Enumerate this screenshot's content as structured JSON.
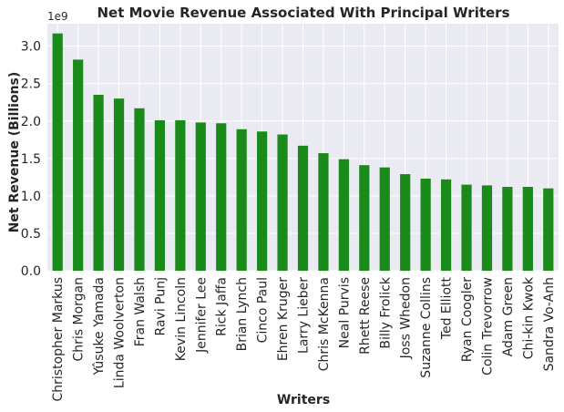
{
  "chart_data": {
    "type": "bar",
    "title": "Net Movie Revenue Associated With Principal Writers",
    "xlabel": "Writers",
    "ylabel": "Net Revenue (Billions)",
    "y_offset_label": "1e9",
    "ylim": [
      0,
      3.3
    ],
    "yticks": [
      0.0,
      0.5,
      1.0,
      1.5,
      2.0,
      2.5,
      3.0
    ],
    "ytick_labels": [
      "0.0",
      "0.5",
      "1.0",
      "1.5",
      "2.0",
      "2.5",
      "3.0"
    ],
    "grid": true,
    "bar_color": "#1a8a1a",
    "background_color": "#eaeaf2",
    "categories": [
      "Christopher Markus",
      "Chris Morgan",
      "Yûsuke Yamada",
      "Linda Woolverton",
      "Fran Walsh",
      "Ravi Punj",
      "Kevin Lincoln",
      "Jennifer Lee",
      "Rick Jaffa",
      "Brian Lynch",
      "Cinco Paul",
      "Ehren Kruger",
      "Larry Lieber",
      "Chris McKenna",
      "Neal Purvis",
      "Rhett Reese",
      "Billy Frolick",
      "Joss Whedon",
      "Suzanne Collins",
      "Ted Elliott",
      "Ryan Coogler",
      "Colin Trevorrow",
      "Adam Green",
      "Chi-kin Kwok",
      "Sandra Vo-Anh"
    ],
    "values": [
      3.17,
      2.82,
      2.35,
      2.3,
      2.17,
      2.01,
      2.01,
      1.98,
      1.97,
      1.89,
      1.86,
      1.82,
      1.67,
      1.57,
      1.49,
      1.41,
      1.38,
      1.29,
      1.23,
      1.22,
      1.15,
      1.14,
      1.12,
      1.12,
      1.1
    ]
  }
}
